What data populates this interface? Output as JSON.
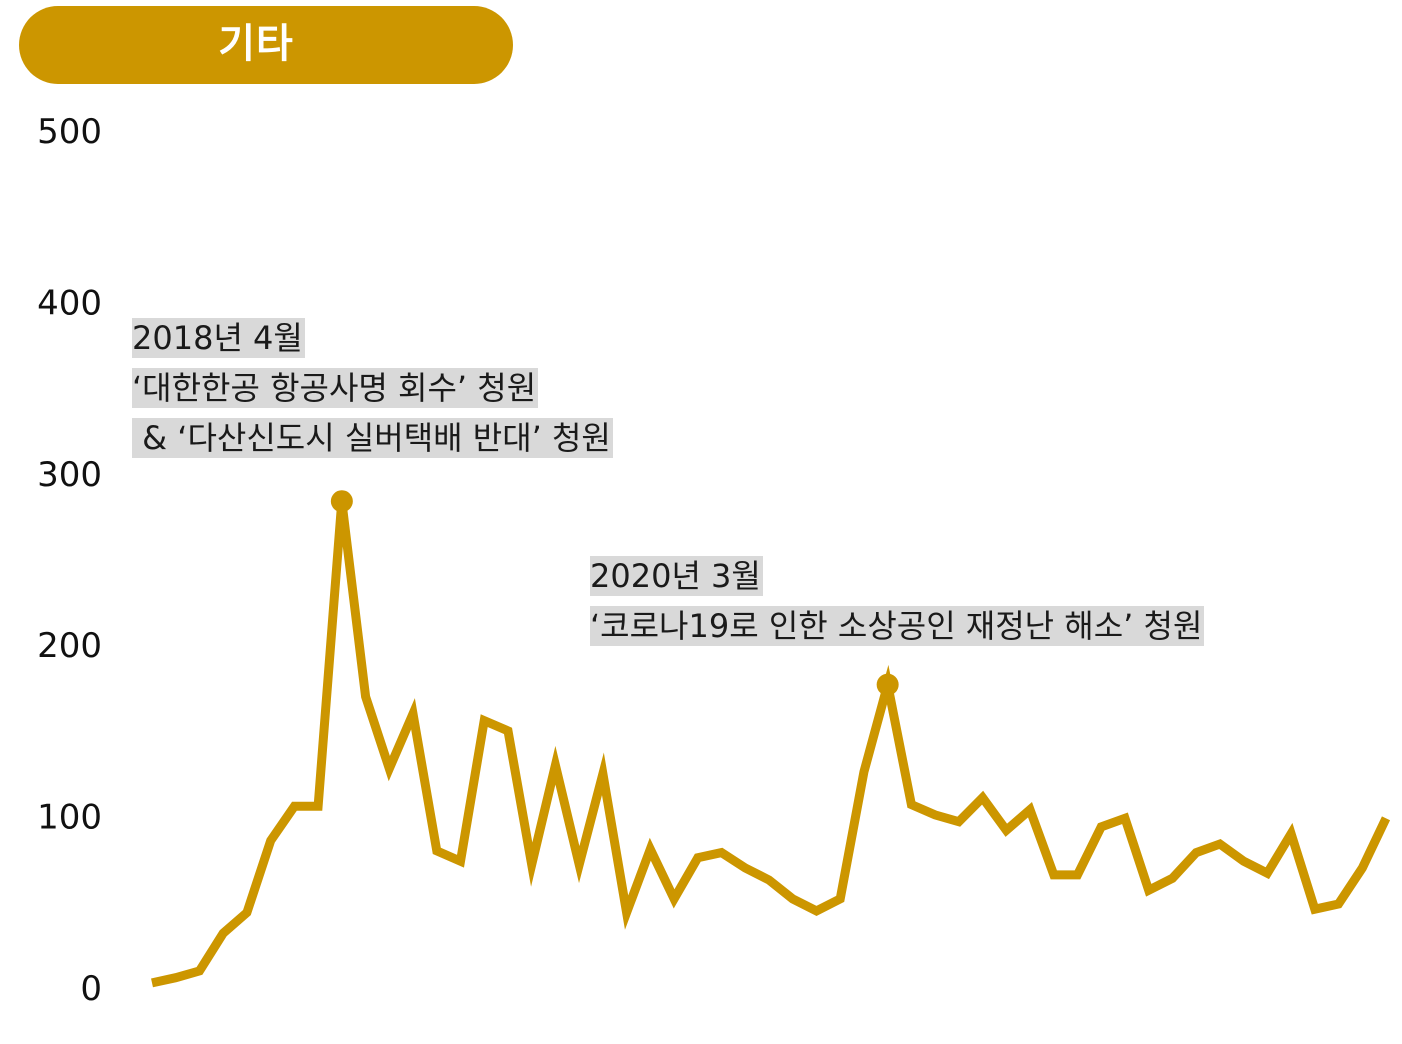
{
  "header": {
    "title": "기타"
  },
  "colors": {
    "accent": "#cc9600",
    "line": "#cc9600",
    "title_text": "#ffffff",
    "annotation_bg": "#d9d9d9"
  },
  "chart_data": {
    "type": "line",
    "title": "기타",
    "xlabel": "",
    "ylabel": "",
    "ylim": [
      0,
      500
    ],
    "yticks": [
      "0",
      "100",
      "200",
      "300",
      "400",
      "500"
    ],
    "grid": false,
    "series": [
      {
        "values": [
          3,
          6,
          10,
          32,
          44,
          86,
          106,
          106,
          284,
          170,
          128,
          160,
          80,
          74,
          156,
          150,
          72,
          130,
          72,
          125,
          44,
          81,
          52,
          76,
          79,
          70,
          63,
          52,
          45,
          52,
          126,
          177,
          107,
          101,
          97,
          111,
          92,
          104,
          66,
          66,
          94,
          99,
          57,
          64,
          79,
          84,
          74,
          67,
          90,
          46,
          49,
          70,
          99
        ]
      }
    ],
    "markers": [
      {
        "index": 8,
        "value": 284
      },
      {
        "index": 31,
        "value": 177
      }
    ],
    "annotations": [
      {
        "lines": [
          "2018년 4월",
          "‘대한한공 항공사명 회수’ 청원",
          " & ‘다산신도시 실버택배 반대’ 청원"
        ]
      },
      {
        "lines": [
          "2020년 3월",
          "‘코로나19로 인한 소상공인 재정난 해소’ 청원"
        ]
      }
    ]
  }
}
